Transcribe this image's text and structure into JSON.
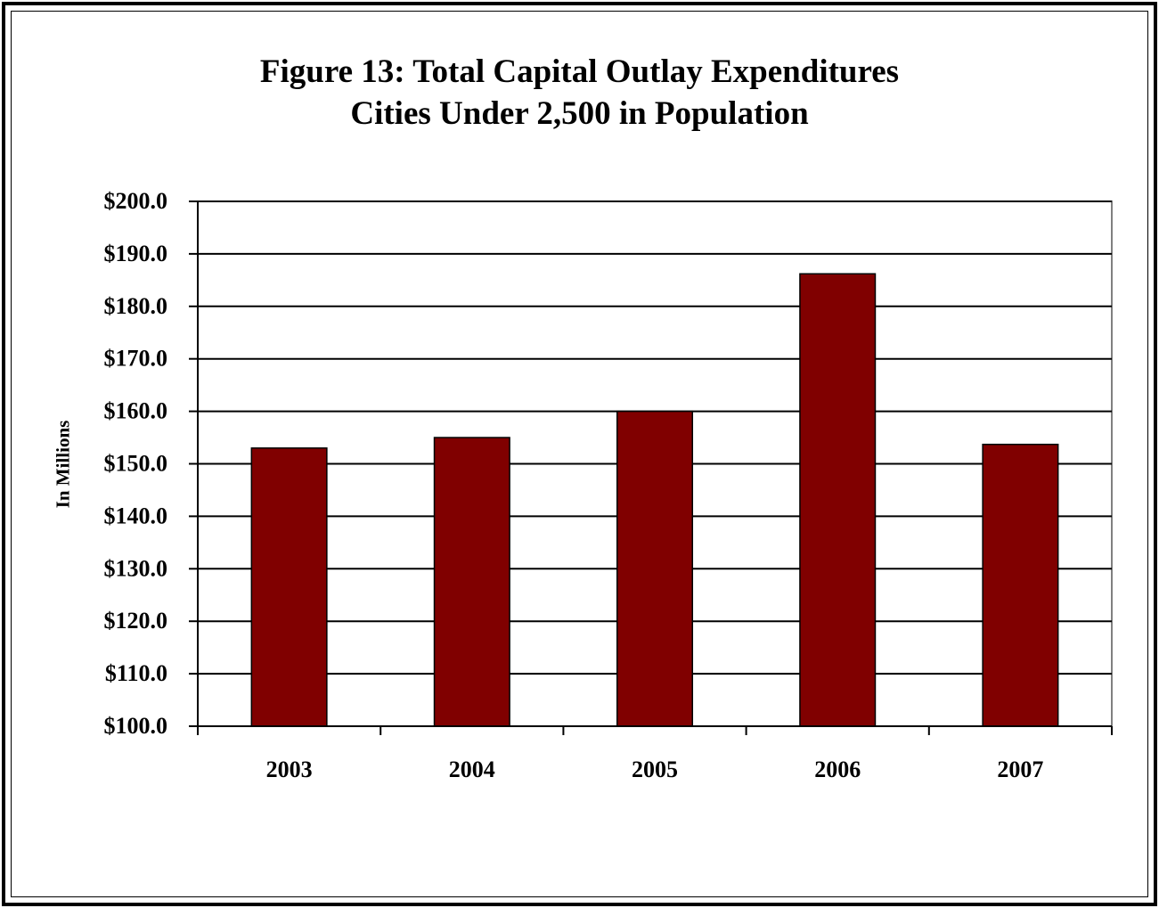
{
  "chart_data": {
    "type": "bar",
    "title": "Figure 13:  Total Capital Outlay Expenditures",
    "subtitle": "Cities Under 2,500 in Population",
    "xlabel": "",
    "ylabel": "In Millions",
    "categories": [
      "2003",
      "2004",
      "2005",
      "2006",
      "2007"
    ],
    "values": [
      153.0,
      155.0,
      160.0,
      186.2,
      153.7
    ],
    "ylim": [
      100,
      200
    ],
    "yticks": [
      "$100.0",
      "$110.0",
      "$120.0",
      "$130.0",
      "$140.0",
      "$150.0",
      "$160.0",
      "$170.0",
      "$180.0",
      "$190.0",
      "$200.0"
    ],
    "grid": true,
    "legend": "none",
    "bar_color": "#800000"
  }
}
